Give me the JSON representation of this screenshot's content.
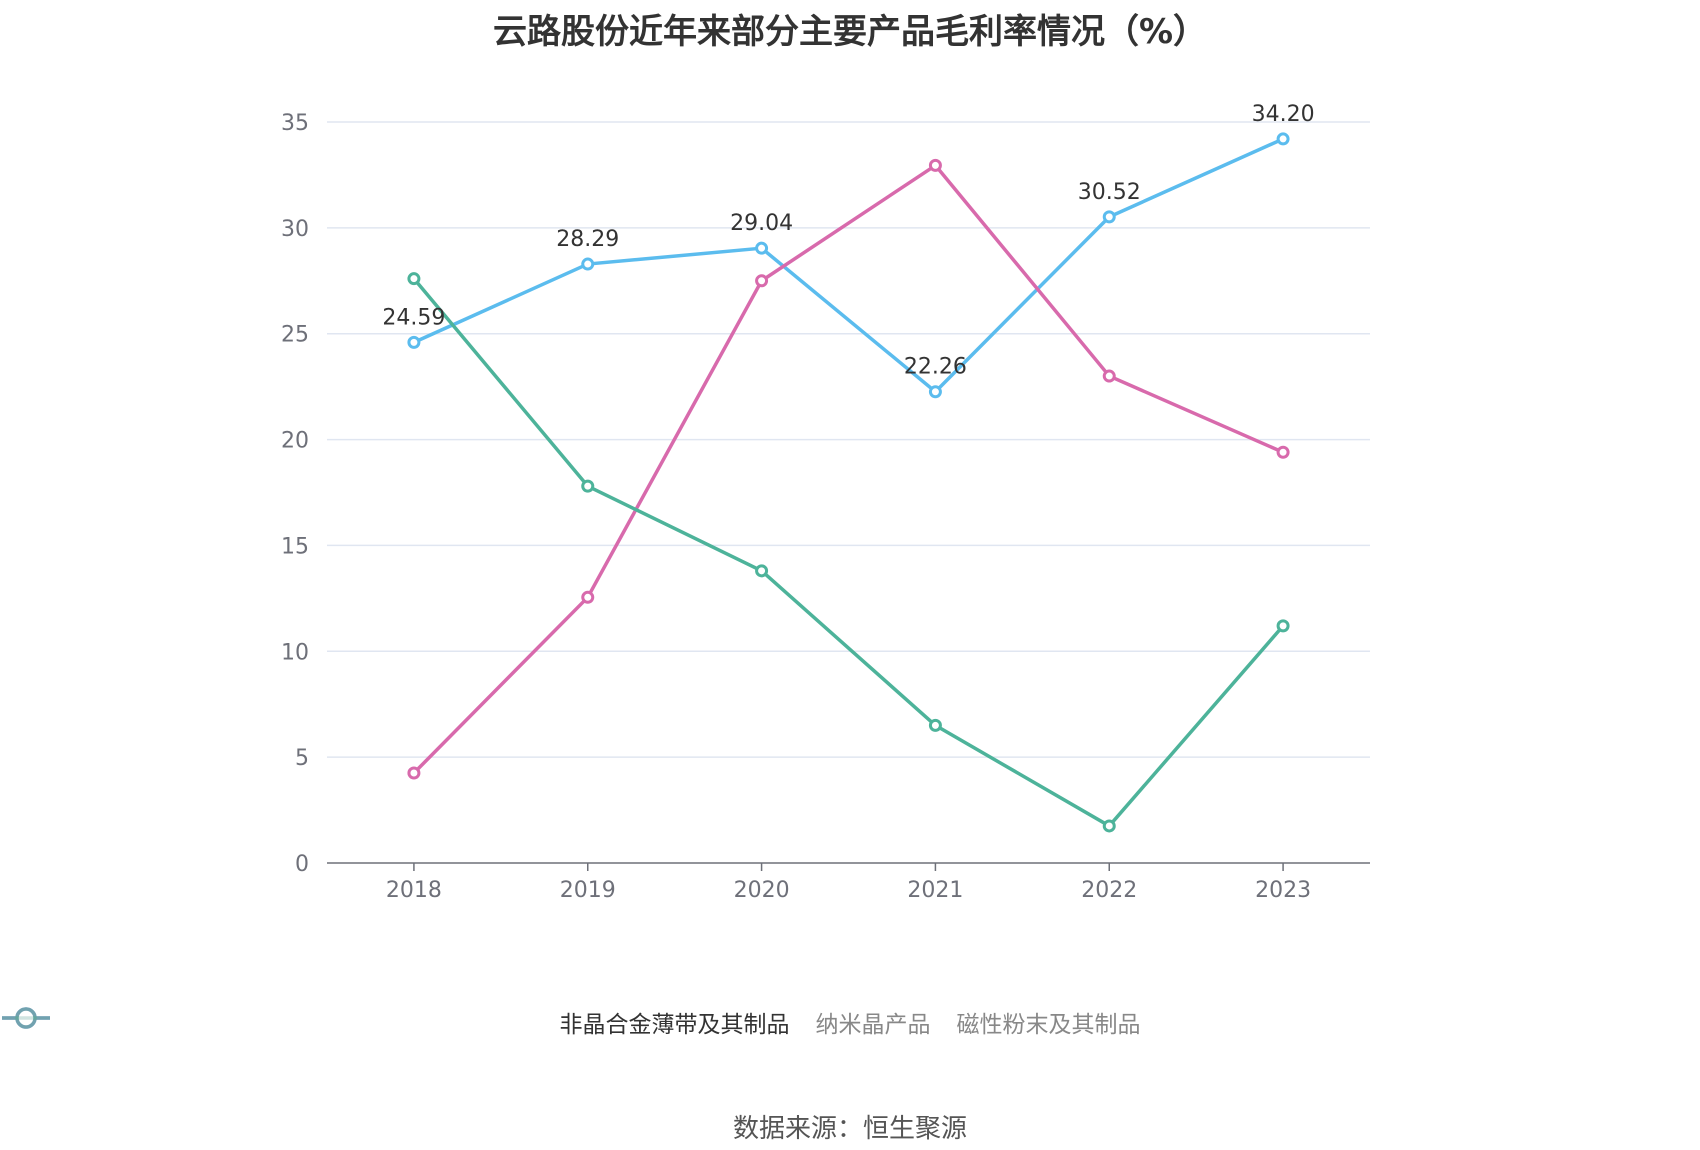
{
  "chart_data": {
    "type": "line",
    "title": "云路股份近年来部分主要产品毛利率情况（%）",
    "categories": [
      "2018",
      "2019",
      "2020",
      "2021",
      "2022",
      "2023"
    ],
    "ylim": [
      0,
      35
    ],
    "yticks": [
      0,
      5,
      10,
      15,
      20,
      25,
      30,
      35
    ],
    "grid": true,
    "legend_position": "bottom",
    "series": [
      {
        "name": "非晶合金薄带及其制品",
        "color": "#5bbcee",
        "values": [
          24.59,
          28.29,
          29.04,
          22.26,
          30.52,
          34.2
        ],
        "labels": [
          "24.59",
          "28.29",
          "29.04",
          "22.26",
          "30.52",
          "34.20"
        ],
        "legend_active": true
      },
      {
        "name": "纳米晶产品",
        "color": "#d86aac",
        "values": [
          4.25,
          12.55,
          27.5,
          32.95,
          23.0,
          19.4
        ],
        "labels": [],
        "legend_active": false
      },
      {
        "name": "磁性粉末及其制品",
        "color": "#4db39a",
        "values": [
          27.6,
          17.8,
          13.8,
          6.5,
          1.75,
          11.2
        ],
        "labels": [],
        "legend_active": false
      }
    ]
  },
  "source": "数据来源：恒生聚源"
}
